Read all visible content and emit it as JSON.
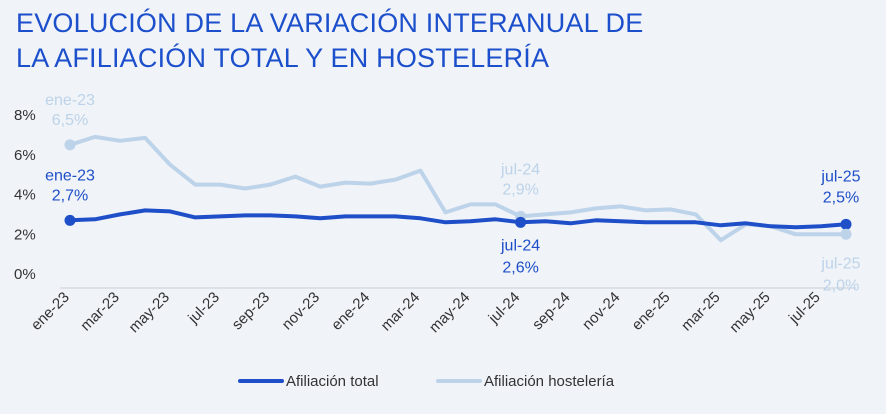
{
  "chart_data": {
    "type": "line",
    "title_lines": [
      "EVOLUCIÓN DE LA VARIACIÓN INTERANUAL DE",
      "LA AFILIACIÓN TOTAL Y EN HOSTELERÍA"
    ],
    "ylim": [
      0,
      8
    ],
    "yticks": [
      0,
      2,
      4,
      6,
      8
    ],
    "ytick_labels": [
      "0%",
      "2%",
      "4%",
      "6%",
      "8%"
    ],
    "xtick_labels": [
      "ene-23",
      "mar-23",
      "may-23",
      "jul-23",
      "sep-23",
      "nov-23",
      "ene-24",
      "mar-24",
      "may-24",
      "jul-24",
      "sep-24",
      "nov-24",
      "ene-25",
      "mar-25",
      "may-25",
      "jul-25"
    ],
    "series": [
      {
        "name": "Afiliación total",
        "color": "#1e4fc9",
        "values": [
          2.7,
          2.75,
          3.0,
          3.2,
          3.15,
          2.85,
          2.9,
          2.95,
          2.95,
          2.9,
          2.8,
          2.9,
          2.9,
          2.9,
          2.8,
          2.6,
          2.65,
          2.75,
          2.6,
          2.65,
          2.55,
          2.7,
          2.65,
          2.6,
          2.6,
          2.6,
          2.45,
          2.55,
          2.4,
          2.35,
          2.4,
          2.5
        ]
      },
      {
        "name": "Afiliación hostelería",
        "color": "#bdd3e9",
        "values": [
          6.5,
          6.9,
          6.7,
          6.85,
          5.5,
          4.5,
          4.5,
          4.3,
          4.5,
          4.9,
          4.4,
          4.6,
          4.55,
          4.75,
          5.2,
          3.1,
          3.5,
          3.5,
          2.9,
          3.0,
          3.1,
          3.3,
          3.4,
          3.2,
          3.25,
          3.0,
          1.7,
          2.5,
          2.4,
          2.0,
          2.0,
          2.0
        ]
      }
    ],
    "annotations": [
      {
        "series": 1,
        "index": 0,
        "label": "ene-23",
        "value": "6,5%",
        "color": "#bdd3e9"
      },
      {
        "series": 0,
        "index": 0,
        "label": "ene-23",
        "value": "2,7%",
        "color": "#1e4fc9"
      },
      {
        "series": 1,
        "index": 18,
        "label": "jul-24",
        "value": "2,9%",
        "color": "#bdd3e9"
      },
      {
        "series": 0,
        "index": 18,
        "label": "jul-24",
        "value": "2,6%",
        "color": "#1e4fc9"
      },
      {
        "series": 0,
        "index": 31,
        "label": "jul-25",
        "value": "2,5%",
        "color": "#1e4fc9"
      },
      {
        "series": 1,
        "index": 31,
        "label": "jul-25",
        "value": "2,0%",
        "color": "#bdd3e9"
      }
    ],
    "legend": [
      "Afiliación total",
      "Afiliación hostelería"
    ],
    "legend_position": "bottom-center"
  }
}
